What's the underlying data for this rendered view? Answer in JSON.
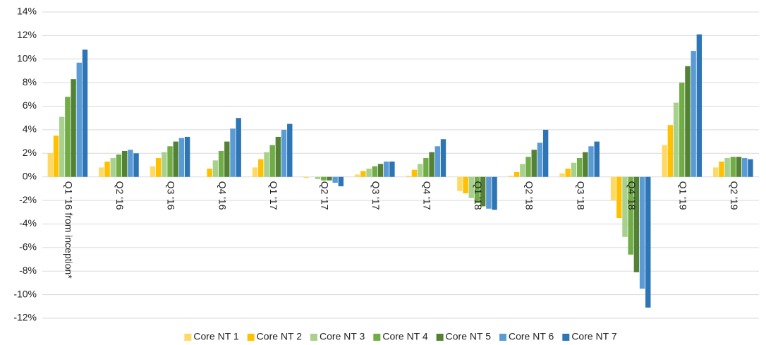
{
  "chart_data": {
    "type": "bar",
    "categories": [
      "Q1 '16 from inception*",
      "Q2 '16",
      "Q3 '16",
      "Q4 '16",
      "Q1 '17",
      "Q2 '17",
      "Q3 '17",
      "Q4 '17",
      "Q1 '18",
      "Q2 '18",
      "Q3 '18",
      "Q4 '18",
      "Q1 '19",
      "Q2 '19"
    ],
    "series": [
      {
        "name": "Core NT 1",
        "color": "#ffd966",
        "values": [
          2.0,
          0.8,
          0.9,
          0.0,
          0.8,
          -0.1,
          0.2,
          0.1,
          -1.2,
          0.1,
          0.3,
          -2.0,
          2.7,
          0.8
        ]
      },
      {
        "name": "Core NT 2",
        "color": "#ffc000",
        "values": [
          3.5,
          1.3,
          1.6,
          0.7,
          1.5,
          0.0,
          0.5,
          0.6,
          -1.4,
          0.4,
          0.7,
          -3.5,
          4.4,
          1.3
        ]
      },
      {
        "name": "Core NT 3",
        "color": "#a9d18e",
        "values": [
          5.1,
          1.6,
          2.1,
          1.4,
          2.1,
          -0.2,
          0.7,
          1.1,
          -1.8,
          1.1,
          1.2,
          -5.1,
          6.3,
          1.6
        ]
      },
      {
        "name": "Core NT 4",
        "color": "#70ad47",
        "values": [
          6.8,
          1.9,
          2.6,
          2.2,
          2.7,
          -0.3,
          0.9,
          1.6,
          -2.2,
          1.7,
          1.6,
          -6.6,
          8.0,
          1.7
        ]
      },
      {
        "name": "Core NT 5",
        "color": "#548235",
        "values": [
          8.3,
          2.2,
          3.0,
          3.0,
          3.4,
          -0.3,
          1.1,
          2.1,
          -2.5,
          2.3,
          2.1,
          -8.1,
          9.4,
          1.7
        ]
      },
      {
        "name": "Core NT 6",
        "color": "#5b9bd5",
        "values": [
          9.7,
          2.3,
          3.3,
          4.1,
          4.0,
          -0.5,
          1.3,
          2.6,
          -2.7,
          2.9,
          2.6,
          -9.5,
          10.7,
          1.6
        ]
      },
      {
        "name": "Core NT 7",
        "color": "#2e75b6",
        "values": [
          10.8,
          2.0,
          3.4,
          5.0,
          4.5,
          -0.8,
          1.3,
          3.2,
          -2.8,
          4.0,
          3.0,
          -11.1,
          12.1,
          1.5
        ]
      }
    ],
    "ylim": [
      -12,
      14
    ],
    "yticks": [
      {
        "value": -12,
        "label": "-12%"
      },
      {
        "value": -10,
        "label": "-10%"
      },
      {
        "value": -8,
        "label": "-8%"
      },
      {
        "value": -6,
        "label": "-6%"
      },
      {
        "value": -4,
        "label": "-4%"
      },
      {
        "value": -2,
        "label": "-2%"
      },
      {
        "value": 0,
        "label": "0%"
      },
      {
        "value": 2,
        "label": "2%"
      },
      {
        "value": 4,
        "label": "4%"
      },
      {
        "value": 6,
        "label": "6%"
      },
      {
        "value": 8,
        "label": "8%"
      },
      {
        "value": 10,
        "label": "10%"
      },
      {
        "value": 12,
        "label": "12%"
      },
      {
        "value": 14,
        "label": "14%"
      }
    ],
    "grid": true,
    "legend": "bottom"
  }
}
